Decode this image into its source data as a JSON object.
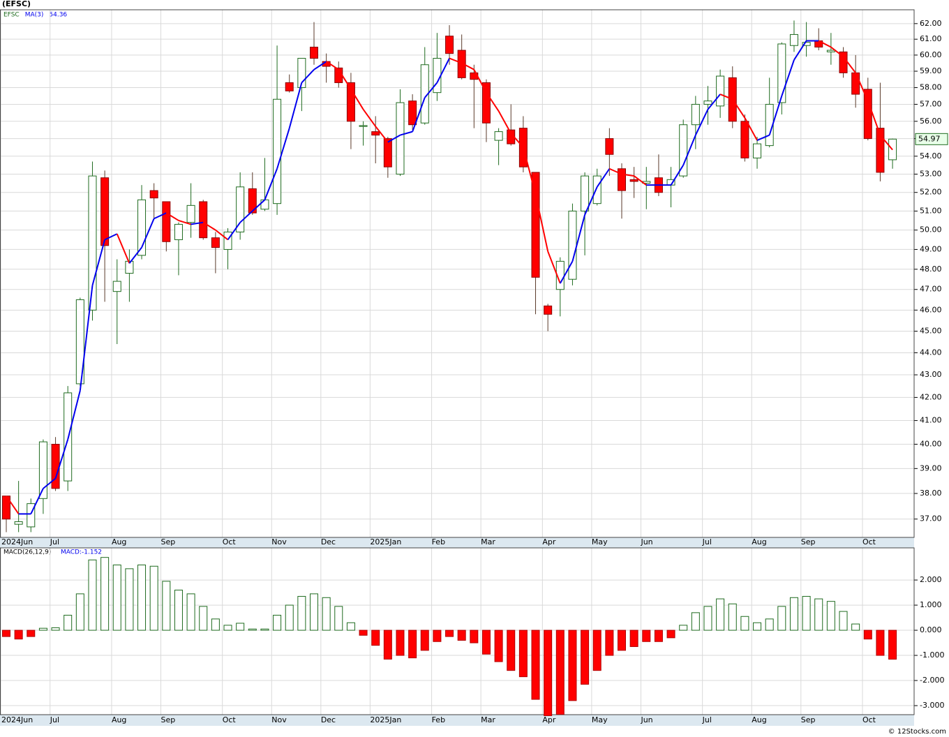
{
  "chart_data": [
    {
      "type": "candlestick",
      "title": "(EFSC)",
      "ticker": "EFSC",
      "log_scale": true,
      "grid": true,
      "categories": [
        "2024Jun",
        null,
        null,
        null,
        "Jul",
        null,
        null,
        null,
        null,
        "Aug",
        null,
        null,
        null,
        "Sep",
        null,
        null,
        null,
        null,
        "Oct",
        null,
        null,
        null,
        "Nov",
        null,
        null,
        null,
        "Dec",
        null,
        null,
        null,
        "2025Jan",
        null,
        null,
        null,
        null,
        "Feb",
        null,
        null,
        null,
        "Mar",
        null,
        null,
        null,
        null,
        "Apr",
        null,
        null,
        null,
        "May",
        null,
        null,
        null,
        "Jun",
        null,
        null,
        null,
        null,
        "Jul",
        null,
        null,
        null,
        "Aug",
        null,
        null,
        null,
        "Sep",
        null,
        null,
        null,
        null,
        "Oct",
        null,
        null
      ],
      "open": [
        37.9,
        36.8,
        36.7,
        37.8,
        40.0,
        38.5,
        42.6,
        46.0,
        52.8,
        46.9,
        47.8,
        48.7,
        52.1,
        51.5,
        49.5,
        50.4,
        51.5,
        49.6,
        49.0,
        49.9,
        52.2,
        51.1,
        51.4,
        58.3,
        58.0,
        60.5,
        59.6,
        59.2,
        58.3,
        55.7,
        55.4,
        55.0,
        53.0,
        57.2,
        55.9,
        57.7,
        61.2,
        60.3,
        58.9,
        58.3,
        54.9,
        55.5,
        55.6,
        53.1,
        46.2,
        47.0,
        47.5,
        51.0,
        51.4,
        55.0,
        53.3,
        52.7,
        52.5,
        52.8,
        52.4,
        52.9,
        55.8,
        57.0,
        56.9,
        58.6,
        56.0,
        53.9,
        54.6,
        57.1,
        60.6,
        60.6,
        60.9,
        60.2,
        60.2,
        58.9,
        57.9,
        55.6,
        53.8
      ],
      "high": [
        37.9,
        38.5,
        37.8,
        40.2,
        40.3,
        42.5,
        46.6,
        53.7,
        53.2,
        48.5,
        49.0,
        52.4,
        52.5,
        51.5,
        50.4,
        52.5,
        51.6,
        49.9,
        50.1,
        53.1,
        53.1,
        53.9,
        60.6,
        58.8,
        59.8,
        62.1,
        60.1,
        59.6,
        58.9,
        56.0,
        56.3,
        55.1,
        57.9,
        57.6,
        60.5,
        61.4,
        61.9,
        61.3,
        59.4,
        58.5,
        55.6,
        57.0,
        56.3,
        53.1,
        46.3,
        48.6,
        51.4,
        53.1,
        53.3,
        55.6,
        53.6,
        53.4,
        53.4,
        54.1,
        53.4,
        56.1,
        57.5,
        58.1,
        59.1,
        59.3,
        56.4,
        55.1,
        58.6,
        60.8,
        62.2,
        62.1,
        61.7,
        61.4,
        60.5,
        60.0,
        58.6,
        58.3,
        55.0
      ],
      "low": [
        36.5,
        36.5,
        36.5,
        37.2,
        38.1,
        38.1,
        42.5,
        45.5,
        46.4,
        44.4,
        46.4,
        48.5,
        50.6,
        48.9,
        47.7,
        49.6,
        49.5,
        47.8,
        48.0,
        49.5,
        50.8,
        51.0,
        50.8,
        57.7,
        56.6,
        59.4,
        58.3,
        58.0,
        54.4,
        54.6,
        53.6,
        52.8,
        52.9,
        55.5,
        55.8,
        57.2,
        59.4,
        58.5,
        55.6,
        54.8,
        53.5,
        54.6,
        53.1,
        45.8,
        45.0,
        45.7,
        47.2,
        48.7,
        51.3,
        52.9,
        50.6,
        51.7,
        51.1,
        51.8,
        51.2,
        52.8,
        54.4,
        55.8,
        56.2,
        55.6,
        53.7,
        53.3,
        54.5,
        56.4,
        60.2,
        59.9,
        60.3,
        59.4,
        58.6,
        56.8,
        54.9,
        52.6,
        53.3
      ],
      "close": [
        37.0,
        36.9,
        37.6,
        40.1,
        38.2,
        42.2,
        46.5,
        52.9,
        49.2,
        47.4,
        48.4,
        51.6,
        51.7,
        49.4,
        50.3,
        51.3,
        49.6,
        49.1,
        49.9,
        52.3,
        50.9,
        51.6,
        57.3,
        57.8,
        59.8,
        59.8,
        59.3,
        58.3,
        56.0,
        55.75,
        55.2,
        53.4,
        57.1,
        55.8,
        59.4,
        59.8,
        60.1,
        58.6,
        58.5,
        55.9,
        55.4,
        54.7,
        53.4,
        47.6,
        45.8,
        48.4,
        51.0,
        52.9,
        52.9,
        54.1,
        52.1,
        52.6,
        52.6,
        52.0,
        52.7,
        55.8,
        57.0,
        57.2,
        58.7,
        56.0,
        53.9,
        54.7,
        57.0,
        60.7,
        61.3,
        60.8,
        60.5,
        60.3,
        58.9,
        57.6,
        55.0,
        53.1,
        54.97
      ],
      "up_color": "#1f6b1f",
      "down_color": "#ff0000",
      "ma": {
        "name": "MA(3)",
        "rising_color": "#0000ee",
        "falling_color": "#ff0000",
        "values": [
          37.9,
          37.2,
          37.2,
          38.2,
          38.6,
          40.2,
          42.3,
          47.2,
          49.5,
          49.8,
          48.3,
          49.1,
          50.6,
          50.9,
          50.5,
          50.3,
          50.4,
          50.0,
          49.5,
          50.4,
          51.0,
          51.6,
          53.3,
          55.6,
          58.3,
          59.1,
          59.6,
          59.1,
          57.9,
          56.7,
          55.7,
          54.8,
          55.2,
          55.4,
          57.4,
          58.3,
          59.8,
          59.5,
          59.1,
          57.7,
          56.6,
          55.3,
          54.5,
          51.9,
          48.9,
          47.3,
          48.4,
          50.8,
          52.3,
          53.3,
          53.0,
          52.9,
          52.4,
          52.4,
          52.4,
          53.5,
          55.2,
          56.7,
          57.6,
          57.3,
          56.2,
          54.9,
          55.2,
          57.5,
          59.7,
          60.9,
          60.9,
          60.5,
          59.9,
          58.9,
          57.2,
          55.2,
          54.36
        ]
      },
      "ylim": [
        36.3,
        62.9
      ],
      "yticks": [
        {
          "value": 37,
          "label": "37.00"
        },
        {
          "value": 38,
          "label": "38.00"
        },
        {
          "value": 39,
          "label": "39.00"
        },
        {
          "value": 40,
          "label": "40.00"
        },
        {
          "value": 41,
          "label": "41.00"
        },
        {
          "value": 42,
          "label": "42.00"
        },
        {
          "value": 43,
          "label": "43.00"
        },
        {
          "value": 44,
          "label": "44.00"
        },
        {
          "value": 45,
          "label": "45.00"
        },
        {
          "value": 46,
          "label": "46.00"
        },
        {
          "value": 47,
          "label": "47.00"
        },
        {
          "value": 48,
          "label": "48.00"
        },
        {
          "value": 49,
          "label": "49.00"
        },
        {
          "value": 50,
          "label": "50.00"
        },
        {
          "value": 51,
          "label": "51.00"
        },
        {
          "value": 52,
          "label": "52.00"
        },
        {
          "value": 53,
          "label": "53.00"
        },
        {
          "value": 54,
          "label": "54.00"
        },
        {
          "value": 55,
          "label": "55.00"
        },
        {
          "value": 56,
          "label": "56.00"
        },
        {
          "value": 57,
          "label": "57.00"
        },
        {
          "value": 58,
          "label": "58.00"
        },
        {
          "value": 59,
          "label": "59.00"
        },
        {
          "value": 60,
          "label": "60.00"
        },
        {
          "value": 61,
          "label": "61.00"
        },
        {
          "value": 62,
          "label": "62.00"
        }
      ]
    },
    {
      "type": "bar",
      "name": "MACD(26,12,9)",
      "value_prefix": "MACD:",
      "positive_color": "#1f6b1f",
      "negative_color": "#ff0000",
      "grid": true,
      "values": [
        -0.25,
        -0.35,
        -0.25,
        0.08,
        0.1,
        0.6,
        1.45,
        2.8,
        2.9,
        2.6,
        2.45,
        2.6,
        2.55,
        1.95,
        1.6,
        1.45,
        0.95,
        0.45,
        0.2,
        0.28,
        0.05,
        0.05,
        0.6,
        1.0,
        1.35,
        1.45,
        1.3,
        0.95,
        0.3,
        -0.2,
        -0.6,
        -1.15,
        -1.0,
        -1.1,
        -0.8,
        -0.45,
        -0.25,
        -0.4,
        -0.5,
        -0.95,
        -1.25,
        -1.6,
        -1.85,
        -2.75,
        -3.4,
        -3.35,
        -2.8,
        -2.15,
        -1.6,
        -1.0,
        -0.8,
        -0.65,
        -0.45,
        -0.45,
        -0.3,
        0.2,
        0.7,
        0.95,
        1.25,
        1.05,
        0.55,
        0.3,
        0.45,
        0.95,
        1.3,
        1.35,
        1.25,
        1.15,
        0.75,
        0.25,
        -0.35,
        -1.0,
        -1.152
      ],
      "ylim": [
        -3.36,
        3.28
      ],
      "yticks": [
        {
          "value": 2,
          "label": "2.000"
        },
        {
          "value": 1,
          "label": "1.000"
        },
        {
          "value": 0,
          "label": "0.000"
        },
        {
          "value": -1,
          "label": "-1.000"
        },
        {
          "value": -2,
          "label": "-2.000"
        },
        {
          "value": -3,
          "label": "-3.000"
        }
      ]
    }
  ],
  "footer": "© 12Stocks.com"
}
